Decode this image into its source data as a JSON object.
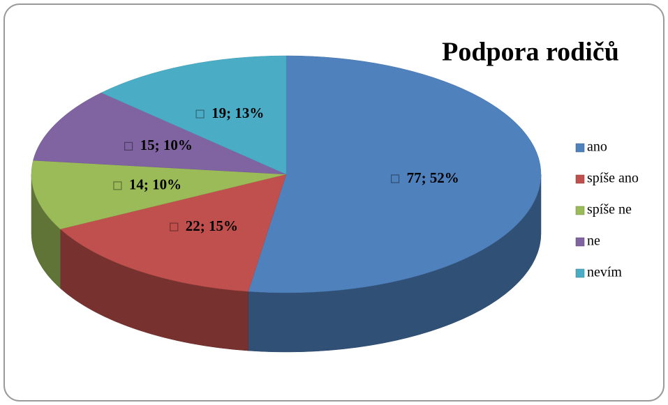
{
  "chart_data": {
    "type": "pie",
    "title": "Podpora rodičů",
    "categories": [
      "ano",
      "spíše ano",
      "spíše ne",
      "ne",
      "nevím"
    ],
    "values": [
      77,
      22,
      14,
      15,
      19
    ],
    "value_labels": [
      "77; 52%",
      "22; 15%",
      "14; 10%",
      "15; 10%",
      "19; 13%"
    ],
    "colors": [
      "#4f81bd",
      "#c0504d",
      "#9bbb59",
      "#8064a2",
      "#4bacc6"
    ],
    "legend": "right"
  }
}
